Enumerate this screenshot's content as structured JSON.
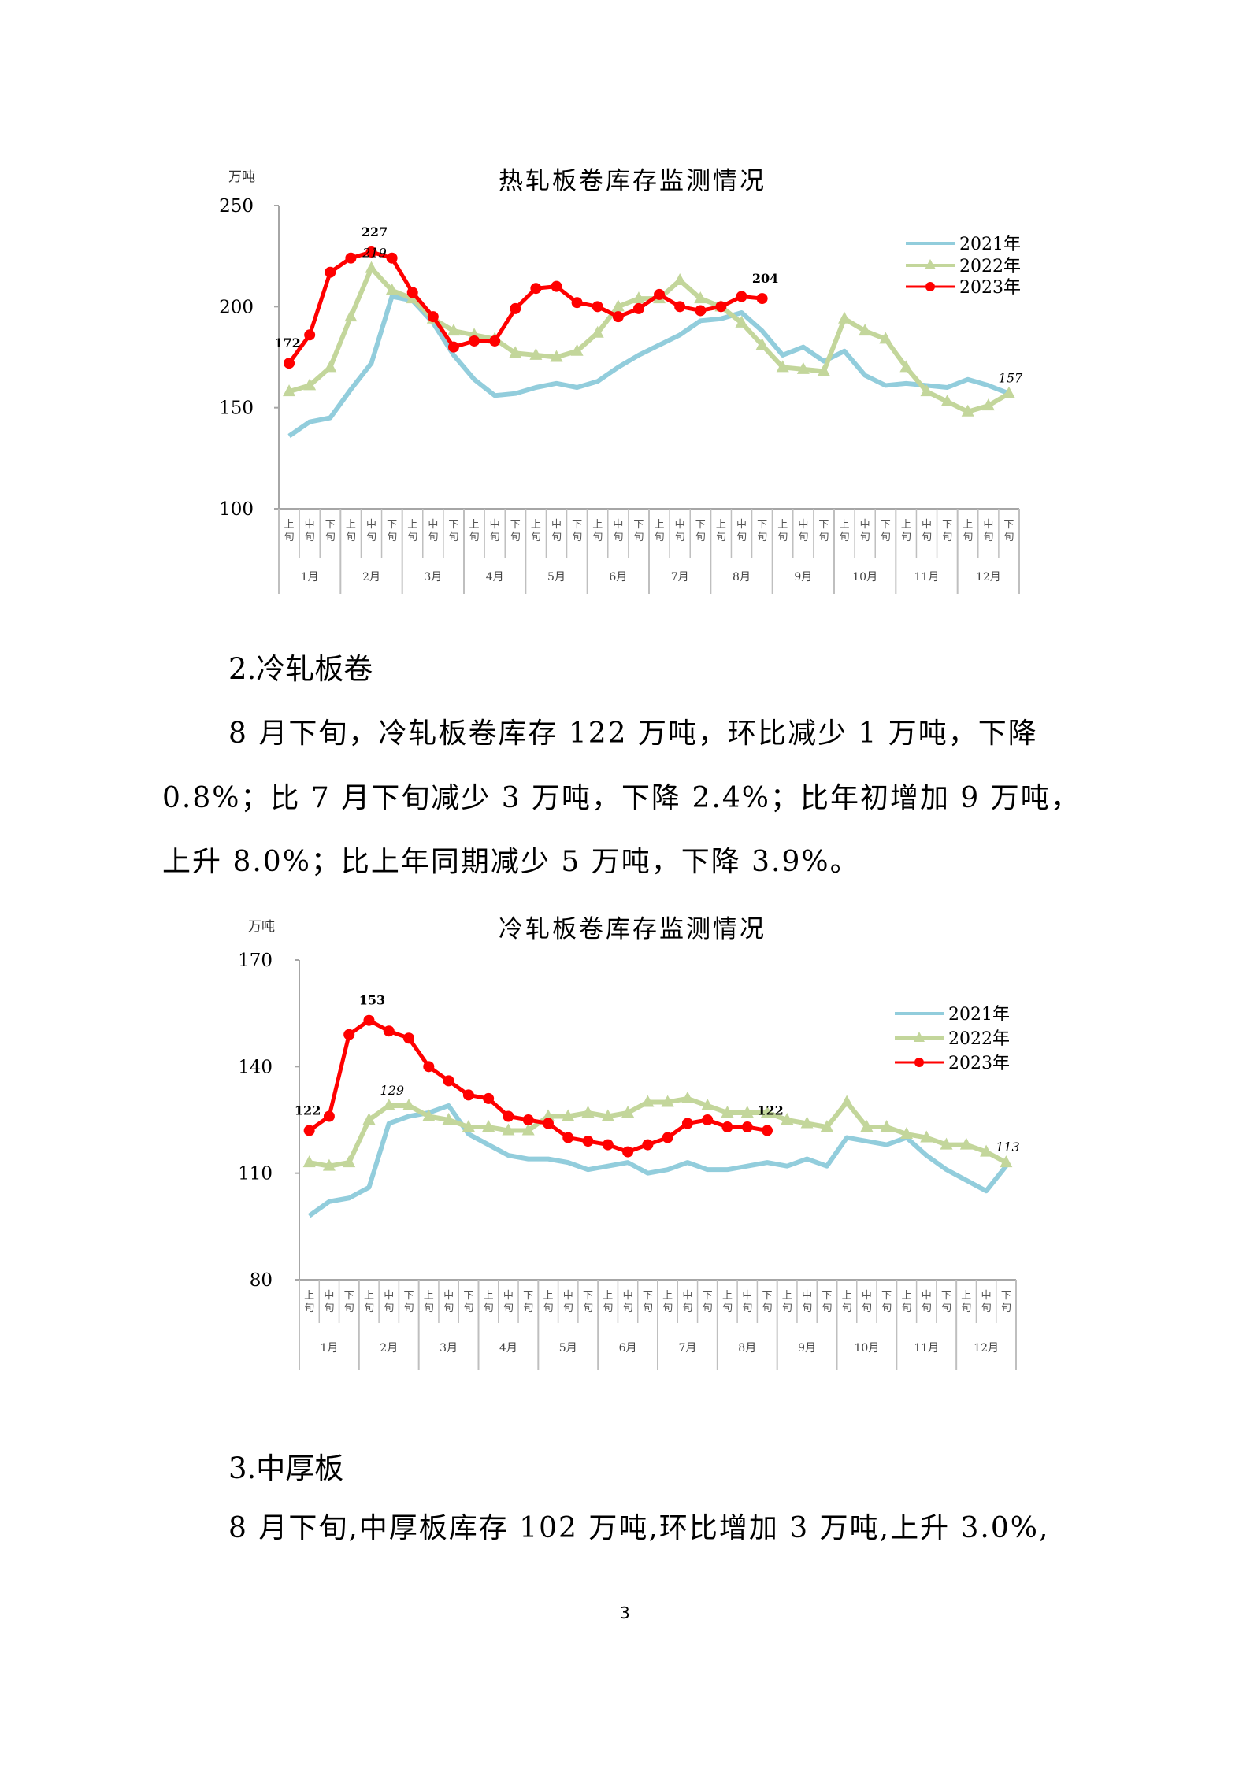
{
  "sections": {
    "cold_rolled": {
      "heading": "2.冷轧板卷",
      "lines": [
        "8 月下旬，冷轧板卷库存 122 万吨，环比减少 1 万吨，下降",
        "0.8%；比 7 月下旬减少 3 万吨，下降 2.4%；比年初增加 9 万吨，",
        "上升 8.0%；比上年同期减少 5 万吨，下降 3.9%。"
      ]
    },
    "medium_plate": {
      "heading": "3.中厚板",
      "lines": [
        "8 月下旬,中厚板库存 102 万吨,环比增加 3 万吨,上升 3.0%,"
      ]
    }
  },
  "page_number": "3",
  "colors": {
    "s2021": "#92cddc",
    "s2022": "#c3d69b",
    "s2023": "#ff0000",
    "axis": "#a6a6a6"
  },
  "chart_data": [
    {
      "type": "line",
      "title": "热轧板卷库存监测情况",
      "unit": "万吨",
      "ylim": [
        100,
        250
      ],
      "yticks": [
        100,
        150,
        200,
        250
      ],
      "grid": false,
      "legend_position": "top-right",
      "periods": [
        "上旬",
        "中旬",
        "下旬"
      ],
      "months": [
        "1月",
        "2月",
        "3月",
        "4月",
        "5月",
        "6月",
        "7月",
        "8月",
        "9月",
        "10月",
        "11月",
        "12月"
      ],
      "series": [
        {
          "name": "2021年",
          "color": "#92cddc",
          "marker": "none",
          "values": [
            136,
            143,
            145,
            159,
            172,
            205,
            203,
            192,
            176,
            164,
            156,
            157,
            160,
            162,
            160,
            163,
            170,
            176,
            181,
            186,
            193,
            194,
            197,
            188,
            176,
            180,
            173,
            178,
            166,
            161,
            162,
            161,
            160,
            164,
            161,
            157
          ]
        },
        {
          "name": "2022年",
          "color": "#c3d69b",
          "marker": "triangle",
          "values": [
            158,
            161,
            170,
            195,
            219,
            208,
            204,
            194,
            188,
            186,
            184,
            177,
            176,
            175,
            178,
            187,
            200,
            204,
            204,
            213,
            204,
            200,
            192,
            181,
            170,
            169,
            168,
            194,
            188,
            184,
            170,
            158,
            153,
            148,
            151,
            157
          ]
        },
        {
          "name": "2023年",
          "color": "#ff0000",
          "marker": "circle",
          "values": [
            172,
            186,
            217,
            224,
            227,
            224,
            207,
            195,
            180,
            183,
            183,
            199,
            209,
            210,
            202,
            200,
            195,
            199,
            206,
            200,
            198,
            200,
            205,
            204
          ]
        }
      ],
      "annotations": [
        {
          "series": 2,
          "index": 0,
          "text": "172",
          "style": "bold"
        },
        {
          "series": 2,
          "index": 4,
          "text": "227",
          "style": "bold"
        },
        {
          "series": 1,
          "index": 4,
          "text": "219",
          "style": "italic"
        },
        {
          "series": 2,
          "index": 23,
          "text": "204",
          "style": "bold"
        },
        {
          "series": 1,
          "index": 35,
          "text": "157",
          "style": "italic"
        }
      ]
    },
    {
      "type": "line",
      "title": "冷轧板卷库存监测情况",
      "unit": "万吨",
      "ylim": [
        80,
        170
      ],
      "yticks": [
        80,
        110,
        140,
        170
      ],
      "grid": false,
      "legend_position": "top-right",
      "periods": [
        "上旬",
        "中旬",
        "下旬"
      ],
      "months": [
        "1月",
        "2月",
        "3月",
        "4月",
        "5月",
        "6月",
        "7月",
        "8月",
        "9月",
        "10月",
        "11月",
        "12月"
      ],
      "series": [
        {
          "name": "2021年",
          "color": "#92cddc",
          "marker": "none",
          "values": [
            98,
            102,
            103,
            106,
            124,
            126,
            127,
            129,
            121,
            118,
            115,
            114,
            114,
            113,
            111,
            112,
            113,
            110,
            111,
            113,
            111,
            111,
            112,
            113,
            112,
            114,
            112,
            120,
            119,
            118,
            120,
            115,
            111,
            108,
            105,
            112
          ]
        },
        {
          "name": "2022年",
          "color": "#c3d69b",
          "marker": "triangle",
          "values": [
            113,
            112,
            113,
            125,
            129,
            129,
            126,
            125,
            123,
            123,
            122,
            122,
            126,
            126,
            127,
            126,
            127,
            130,
            130,
            131,
            129,
            127,
            127,
            127,
            125,
            124,
            123,
            130,
            123,
            123,
            121,
            120,
            118,
            118,
            116,
            113
          ]
        },
        {
          "name": "2023年",
          "color": "#ff0000",
          "marker": "circle",
          "values": [
            122,
            126,
            149,
            153,
            150,
            148,
            140,
            136,
            132,
            131,
            126,
            125,
            124,
            120,
            119,
            118,
            116,
            118,
            120,
            124,
            125,
            123,
            123,
            122
          ]
        }
      ],
      "annotations": [
        {
          "series": 2,
          "index": 0,
          "text": "122",
          "style": "bold"
        },
        {
          "series": 2,
          "index": 3,
          "text": "153",
          "style": "bold"
        },
        {
          "series": 1,
          "index": 4,
          "text": "129",
          "style": "italic"
        },
        {
          "series": 2,
          "index": 23,
          "text": "122",
          "style": "bold"
        },
        {
          "series": 1,
          "index": 35,
          "text": "113",
          "style": "italic"
        }
      ]
    }
  ]
}
